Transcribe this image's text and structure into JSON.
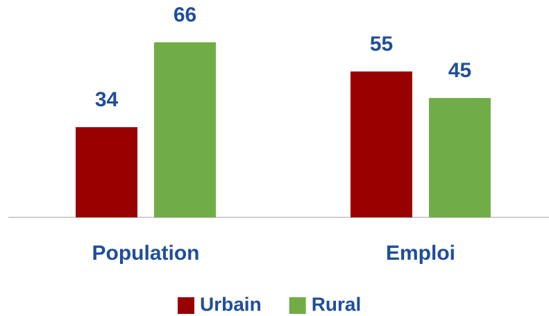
{
  "chart_data": {
    "type": "bar",
    "categories": [
      "Population",
      "Emploi"
    ],
    "series": [
      {
        "name": "Urbain",
        "color": "#990000",
        "values": [
          34,
          55
        ]
      },
      {
        "name": "Rural",
        "color": "#70ad47",
        "values": [
          66,
          45
        ]
      }
    ],
    "ylim": [
      0,
      80
    ],
    "legend": "bottom"
  }
}
